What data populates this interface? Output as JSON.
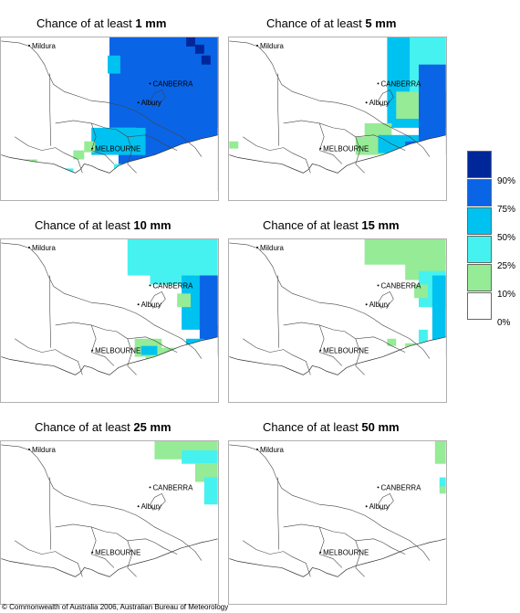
{
  "panels": [
    {
      "title_prefix": "Chance of at least",
      "threshold": "1 mm",
      "level": 1
    },
    {
      "title_prefix": "Chance of at least",
      "threshold": "5 mm",
      "level": 2
    },
    {
      "title_prefix": "Chance of at least",
      "threshold": "10 mm",
      "level": 3
    },
    {
      "title_prefix": "Chance of at least",
      "threshold": "15 mm",
      "level": 4
    },
    {
      "title_prefix": "Chance of at least",
      "threshold": "25 mm",
      "level": 5
    },
    {
      "title_prefix": "Chance of at least",
      "threshold": "50 mm",
      "level": 6
    }
  ],
  "cities": {
    "mildura": "Mildura",
    "canberra": "CANBERRA",
    "albury": "Albury",
    "melbourne": "MELBOURNE"
  },
  "legend": {
    "labels": [
      "90%",
      "75%",
      "50%",
      "25%",
      "10%",
      "0%"
    ],
    "colors": [
      "#00279a",
      "#0a64e6",
      "#00c2f0",
      "#46f2f0",
      "#96eb96",
      "#ffffff"
    ]
  },
  "footer": "© Commonwealth of Australia 2006, Australian Bureau of Meteorology"
}
